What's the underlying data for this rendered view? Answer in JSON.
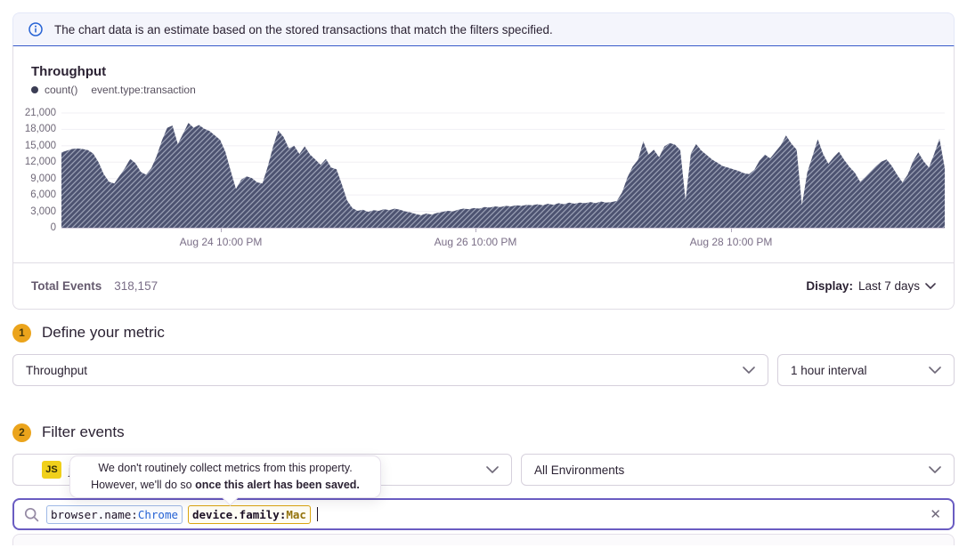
{
  "banner": {
    "text": "The chart data is an estimate based on the stored transactions that match the filters specified."
  },
  "chart_panel": {
    "title": "Throughput",
    "legend": {
      "series_label": "count()",
      "query_label": "event.type:transaction"
    },
    "footer": {
      "total_events_label": "Total Events",
      "total_events_value": "318,157",
      "display_label": "Display:",
      "display_value": "Last 7 days"
    }
  },
  "chart_data": {
    "type": "area",
    "title": "Throughput",
    "series": [
      {
        "name": "count() event.type:transaction",
        "values": [
          13800,
          14100,
          14400,
          14500,
          14400,
          14200,
          13600,
          12000,
          9800,
          8400,
          8100,
          9500,
          10900,
          12600,
          11800,
          10200,
          9700,
          10900,
          13100,
          16000,
          18300,
          18700,
          15300,
          17200,
          19200,
          18300,
          18800,
          18100,
          17700,
          16900,
          16100,
          13900,
          10400,
          7100,
          8800,
          9400,
          9100,
          8300,
          8100,
          11200,
          14800,
          17800,
          16600,
          14500,
          15000,
          13500,
          14900,
          13400,
          12500,
          11500,
          12600,
          11000,
          10700,
          8000,
          5000,
          3600,
          3100,
          3300,
          2900,
          3200,
          3100,
          3400,
          3200,
          3500,
          3300,
          3000,
          2800,
          2500,
          2300,
          2600,
          2400,
          2700,
          2900,
          3100,
          3000,
          3300,
          3500,
          3400,
          3600,
          3500,
          3800,
          3700,
          3900,
          3800,
          4000,
          3900,
          4100,
          4000,
          4200,
          4100,
          4300,
          4100,
          4400,
          4200,
          4500,
          4300,
          4600,
          4400,
          4600,
          4500,
          4700,
          4500,
          4800,
          4600,
          4700,
          4900,
          6500,
          9200,
          11200,
          12400,
          15800,
          13400,
          14300,
          12900,
          14900,
          15500,
          15200,
          14200,
          5000,
          13600,
          15300,
          14100,
          13300,
          12500,
          11900,
          11300,
          11000,
          10700,
          10400,
          10000,
          9800,
          10600,
          12300,
          13400,
          12700,
          13900,
          15100,
          16900,
          15400,
          14300,
          4100,
          10100,
          13100,
          16200,
          13500,
          11700,
          12900,
          13900,
          12400,
          11100,
          10100,
          8400,
          9300,
          10300,
          11300,
          12100,
          12500,
          11300,
          9700,
          8300,
          9700,
          12200,
          13800,
          12200,
          11000,
          13500,
          16300,
          10900
        ]
      }
    ],
    "interval": "1 hour",
    "y_ticks": [
      0,
      3000,
      6000,
      9000,
      12000,
      15000,
      18000,
      21000
    ],
    "ylim": [
      0,
      22465
    ],
    "x_ticks": [
      {
        "label": "Aug 24 10:00 PM",
        "f": 0.1805
      },
      {
        "label": "Aug 26 10:00 PM",
        "f": 0.4688
      },
      {
        "label": "Aug 28 10:00 PM",
        "f": 0.7581
      }
    ],
    "grid": "horizontal",
    "legend_position": "top-left",
    "style": {
      "fill": "#4d5371",
      "hatch": "#9ba1b6"
    }
  },
  "sections": {
    "metric": {
      "step": "1",
      "title": "Define your metric",
      "metric_select_value": "Throughput",
      "interval_select_value": "1 hour interval"
    },
    "filter": {
      "step": "2",
      "title": "Filter events",
      "project_badge": "JS",
      "project_name_visible": "j",
      "environment_select_value": "All Environments"
    }
  },
  "tooltip": {
    "line1": "We don't routinely collect metrics from this property.",
    "line2_prefix": "However, we'll do so ",
    "line2_bold": "once this alert has been saved."
  },
  "search": {
    "tokens": [
      {
        "key": "browser.name:",
        "value": "Chrome",
        "style": "blue"
      },
      {
        "key": "device.family:",
        "value": "Mac",
        "style": "amber"
      }
    ],
    "clear_icon": "✕"
  },
  "colors": {
    "banner_bg": "#f4f5fc",
    "banner_border_bottom": "#3759c9",
    "info_icon": "#2562d4",
    "panel_border": "#e0dce5",
    "chart_fill": "#4d5371",
    "chart_hatch": "#9ba1b6",
    "step_badge_bg": "#eba41c",
    "platform_badge_bg": "#f0d01a",
    "search_focus_border": "#6a5cc2",
    "token_blue_border": "#9fb9e6",
    "token_blue_value": "#2562d4",
    "token_amber_border": "#dba510",
    "token_amber_value": "#94730c"
  }
}
